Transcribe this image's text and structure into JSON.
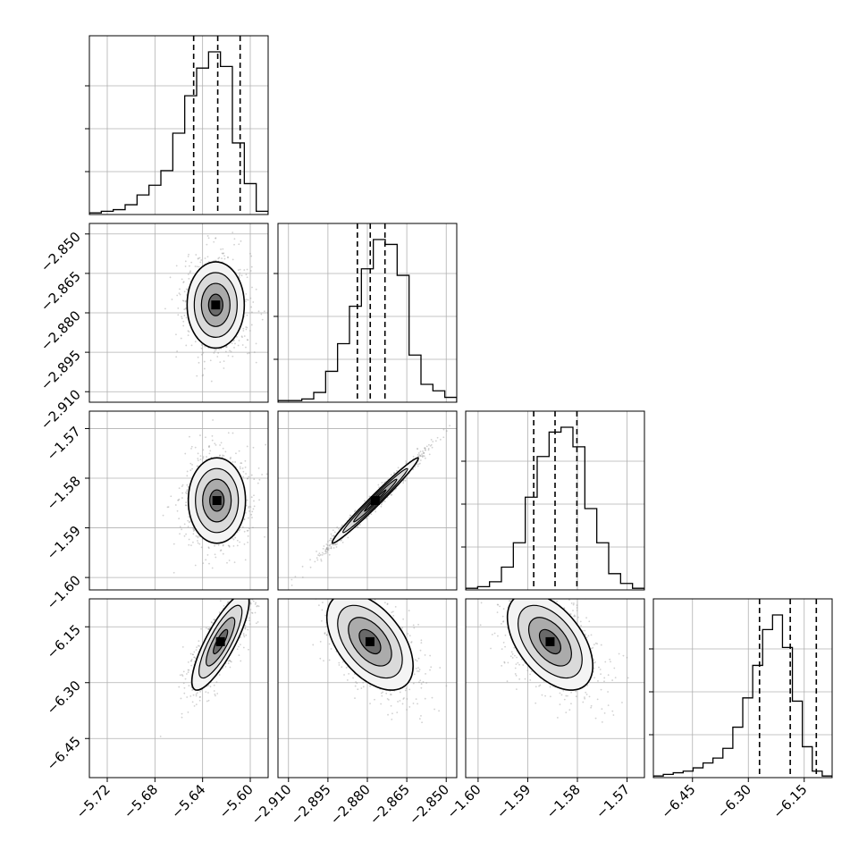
{
  "chart_data": {
    "type": "corner",
    "parameters": [
      {
        "range": [
          -5.735,
          -5.585
        ],
        "ticks": [
          -5.72,
          -5.68,
          -5.64,
          -5.6
        ],
        "tick_labels": [
          "−5.72",
          "−5.68",
          "−5.64",
          "−5.60"
        ],
        "quantiles": [
          -5.6475,
          -5.6273,
          -5.6085
        ],
        "hist": [
          1,
          2,
          3,
          6,
          12,
          18,
          27,
          50,
          73,
          90,
          100,
          91,
          44,
          19,
          2
        ]
      },
      {
        "range": [
          -2.914,
          -2.846
        ],
        "ticks": [
          -2.91,
          -2.895,
          -2.88,
          -2.865,
          -2.85
        ],
        "tick_labels": [
          "−2.910",
          "−2.895",
          "−2.880",
          "−2.865",
          "−2.850"
        ],
        "quantiles": [
          -2.8838,
          -2.8789,
          -2.8733
        ],
        "hist": [
          1,
          1,
          2,
          6,
          19,
          36,
          59,
          82,
          100,
          97,
          78,
          29,
          11,
          7,
          3
        ]
      },
      {
        "range": [
          -1.6025,
          -1.5665
        ],
        "ticks": [
          -1.6,
          -1.59,
          -1.58,
          -1.57
        ],
        "tick_labels": [
          "−1.60",
          "−1.59",
          "−1.58",
          "−1.57"
        ],
        "quantiles": [
          -1.5888,
          -1.5845,
          -1.5801
        ],
        "hist": [
          1,
          2,
          5,
          14,
          29,
          57,
          82,
          97,
          100,
          88,
          50,
          29,
          10,
          4,
          1
        ]
      },
      {
        "range": [
          -6.555,
          -6.075
        ],
        "ticks": [
          -6.45,
          -6.3,
          -6.15
        ],
        "tick_labels": [
          "−6.45",
          "−6.30",
          "−6.15"
        ],
        "quantiles": [
          -6.27,
          -6.1875,
          -6.1175
        ],
        "hist": [
          1,
          2,
          3,
          4,
          6,
          9,
          12,
          18,
          31,
          49,
          69,
          91,
          100,
          80,
          47,
          19,
          4,
          1
        ]
      }
    ],
    "pairs": [
      {
        "row": 1,
        "col": 0,
        "center": [
          -5.629,
          -2.877
        ],
        "sigma": [
          0.012,
          0.0082
        ],
        "corr": 0.0
      },
      {
        "row": 2,
        "col": 0,
        "center": [
          -5.628,
          -1.5845
        ],
        "sigma": [
          0.012,
          0.0043
        ],
        "corr": 0.0
      },
      {
        "row": 2,
        "col": 1,
        "center": [
          -2.877,
          -1.5845
        ],
        "sigma": [
          0.0082,
          0.0043
        ],
        "corr": 0.985
      },
      {
        "row": 3,
        "col": 0,
        "center": [
          -5.625,
          -6.19
        ],
        "sigma": [
          0.012,
          0.065
        ],
        "corr": 0.82
      },
      {
        "row": 3,
        "col": 1,
        "center": [
          -2.879,
          -6.19
        ],
        "sigma": [
          0.0082,
          0.065
        ],
        "corr": -0.5
      },
      {
        "row": 3,
        "col": 2,
        "center": [
          -1.5855,
          -6.19
        ],
        "sigma": [
          0.0043,
          0.065
        ],
        "corr": -0.5
      }
    ],
    "contour_levels_sigma": [
      0.5,
      1.0,
      1.5,
      2.0
    ],
    "grid": true,
    "colors": {
      "hist": "#000000",
      "scatter": "#9a9a9a",
      "grid": "#b0b0b0"
    }
  }
}
